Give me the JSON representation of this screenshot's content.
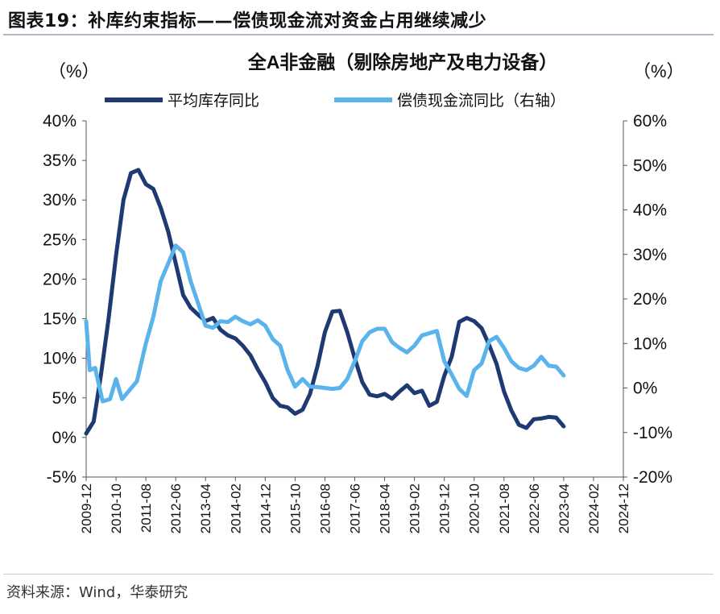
{
  "figure": {
    "label": "图表19：",
    "title": "补库约束指标——偿债现金流对资金占用继续减少",
    "source": "资料来源：Wind，华泰研究"
  },
  "chart_data": {
    "type": "line",
    "title": "全A非金融（剔除房地产及电力设备）",
    "left_unit": "（%）",
    "right_unit": "（%）",
    "x_tick_labels": [
      "2009-12",
      "2010-10",
      "2011-08",
      "2012-06",
      "2013-04",
      "2014-02",
      "2014-12",
      "2015-10",
      "2016-08",
      "2017-06",
      "2018-04",
      "2019-02",
      "2019-12",
      "2020-10",
      "2021-08",
      "2022-06",
      "2023-04",
      "2024-02",
      "2024-12"
    ],
    "y_left": {
      "min": -5,
      "max": 40,
      "ticks": [
        -5,
        0,
        5,
        10,
        15,
        20,
        25,
        30,
        35,
        40
      ],
      "tick_labels": [
        "-5%",
        "0%",
        "5%",
        "10%",
        "15%",
        "20%",
        "25%",
        "30%",
        "35%",
        "40%"
      ]
    },
    "y_right": {
      "min": -20,
      "max": 60,
      "ticks": [
        -20,
        -10,
        0,
        10,
        20,
        30,
        40,
        50,
        60
      ],
      "tick_labels": [
        "-20%",
        "-10%",
        "0%",
        "10%",
        "20%",
        "30%",
        "40%",
        "50%",
        "60%"
      ]
    },
    "series": [
      {
        "name": "平均库存同比",
        "axis": "left",
        "color": "#1f3a73",
        "points": [
          [
            0,
            0.5
          ],
          [
            0.25,
            2
          ],
          [
            0.5,
            8
          ],
          [
            0.75,
            15
          ],
          [
            1,
            23
          ],
          [
            1.25,
            30
          ],
          [
            1.5,
            33.4
          ],
          [
            1.75,
            33.8
          ],
          [
            2,
            32
          ],
          [
            2.25,
            31.4
          ],
          [
            2.5,
            29
          ],
          [
            2.75,
            26
          ],
          [
            3,
            22
          ],
          [
            3.25,
            18
          ],
          [
            3.5,
            16.4
          ],
          [
            3.75,
            15.5
          ],
          [
            4,
            14.7
          ],
          [
            4.25,
            15.1
          ],
          [
            4.5,
            13.6
          ],
          [
            4.75,
            12.9
          ],
          [
            5,
            12.5
          ],
          [
            5.25,
            11.6
          ],
          [
            5.5,
            10.4
          ],
          [
            5.75,
            8.6
          ],
          [
            6,
            7
          ],
          [
            6.25,
            5
          ],
          [
            6.5,
            4
          ],
          [
            6.75,
            3.8
          ],
          [
            7,
            3
          ],
          [
            7.25,
            3.5
          ],
          [
            7.5,
            5.5
          ],
          [
            7.75,
            9
          ],
          [
            8,
            13.3
          ],
          [
            8.25,
            15.9
          ],
          [
            8.5,
            16
          ],
          [
            8.75,
            13.3
          ],
          [
            9,
            10
          ],
          [
            9.25,
            7
          ],
          [
            9.5,
            5.4
          ],
          [
            9.75,
            5.2
          ],
          [
            10,
            5.5
          ],
          [
            10.25,
            4.9
          ],
          [
            10.5,
            5.8
          ],
          [
            10.75,
            6.6
          ],
          [
            11,
            5.6
          ],
          [
            11.25,
            5.9
          ],
          [
            11.5,
            4
          ],
          [
            11.75,
            4.5
          ],
          [
            12,
            7.8
          ],
          [
            12.25,
            10.2
          ],
          [
            12.5,
            14.6
          ],
          [
            12.75,
            15.1
          ],
          [
            13,
            14.7
          ],
          [
            13.25,
            13.8
          ],
          [
            13.5,
            11.7
          ],
          [
            13.75,
            9.3
          ],
          [
            14,
            5.8
          ],
          [
            14.25,
            3.4
          ],
          [
            14.5,
            1.6
          ],
          [
            14.75,
            1.2
          ],
          [
            15,
            2.3
          ],
          [
            15.25,
            2.4
          ],
          [
            15.5,
            2.6
          ],
          [
            15.75,
            2.5
          ],
          [
            16,
            1.4
          ]
        ]
      },
      {
        "name": "偿债现金流同比（右轴）",
        "axis": "right",
        "color": "#5ab3eb",
        "points": [
          [
            0,
            15
          ],
          [
            0.12,
            4
          ],
          [
            0.3,
            4.5
          ],
          [
            0.55,
            -3
          ],
          [
            0.8,
            -2.5
          ],
          [
            1,
            2
          ],
          [
            1.2,
            -2.5
          ],
          [
            1.45,
            -0.5
          ],
          [
            1.7,
            1.5
          ],
          [
            2,
            10
          ],
          [
            2.25,
            16
          ],
          [
            2.5,
            24
          ],
          [
            2.75,
            28
          ],
          [
            3,
            32
          ],
          [
            3.25,
            30.5
          ],
          [
            3.5,
            24
          ],
          [
            3.75,
            19
          ],
          [
            4,
            14
          ],
          [
            4.25,
            13.5
          ],
          [
            4.5,
            15
          ],
          [
            4.75,
            14.8
          ],
          [
            5,
            16
          ],
          [
            5.25,
            15
          ],
          [
            5.5,
            14.3
          ],
          [
            5.75,
            15.2
          ],
          [
            6,
            14
          ],
          [
            6.25,
            11
          ],
          [
            6.5,
            9.5
          ],
          [
            6.75,
            4
          ],
          [
            7,
            0.3
          ],
          [
            7.25,
            2
          ],
          [
            7.5,
            0.3
          ],
          [
            7.75,
            0.2
          ],
          [
            8,
            0
          ],
          [
            8.25,
            -0.2
          ],
          [
            8.5,
            0
          ],
          [
            8.75,
            2
          ],
          [
            9,
            6
          ],
          [
            9.25,
            10.5
          ],
          [
            9.5,
            12.5
          ],
          [
            9.75,
            13.3
          ],
          [
            10,
            13.3
          ],
          [
            10.25,
            10.3
          ],
          [
            10.5,
            9
          ],
          [
            10.75,
            8
          ],
          [
            11,
            9.5
          ],
          [
            11.25,
            11.8
          ],
          [
            11.5,
            12.3
          ],
          [
            11.75,
            12.8
          ],
          [
            12,
            6
          ],
          [
            12.25,
            3
          ],
          [
            12.5,
            -0.2
          ],
          [
            12.75,
            -1.8
          ],
          [
            13,
            4
          ],
          [
            13.25,
            5.5
          ],
          [
            13.5,
            10.5
          ],
          [
            13.75,
            11.5
          ],
          [
            14,
            9
          ],
          [
            14.25,
            6
          ],
          [
            14.5,
            4.5
          ],
          [
            14.75,
            4
          ],
          [
            15,
            5
          ],
          [
            15.25,
            7
          ],
          [
            15.5,
            5
          ],
          [
            15.75,
            4.8
          ],
          [
            16,
            2.8
          ]
        ]
      }
    ]
  }
}
